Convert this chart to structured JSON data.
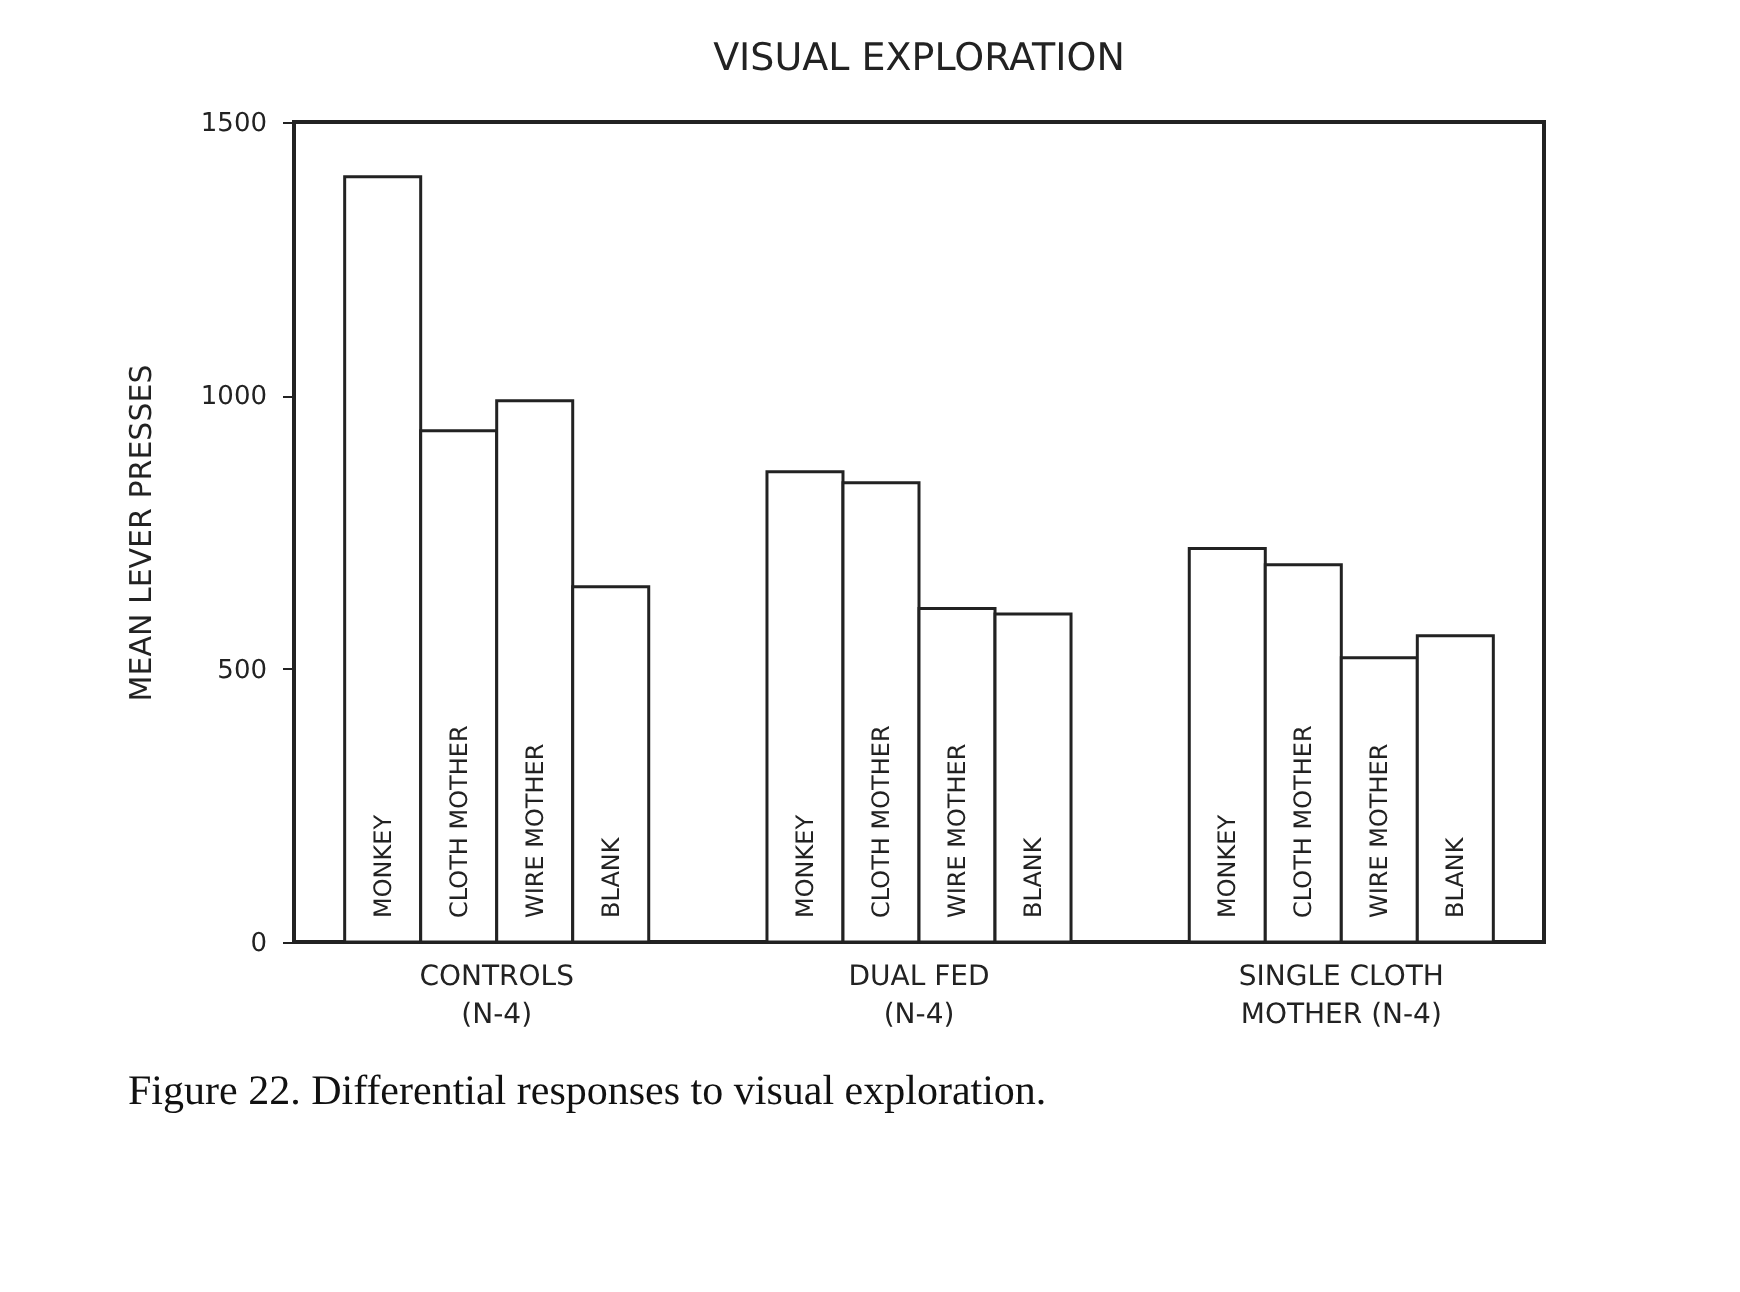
{
  "chart_data": {
    "type": "bar",
    "title": "VISUAL EXPLORATION",
    "ylabel": "MEAN LEVER PRESSES",
    "categories": [
      "CONTROLS\n(N-4)",
      "DUAL FED\n(N-4)",
      "SINGLE CLOTH\nMOTHER (N-4)"
    ],
    "series": [
      {
        "name": "MONKEY",
        "color": "#ffffff",
        "values": [
          1400,
          860,
          720
        ]
      },
      {
        "name": "CLOTH MOTHER",
        "color": "#ffffff",
        "values": [
          935,
          840,
          690
        ]
      },
      {
        "name": "WIRE MOTHER",
        "color": "#ffffff",
        "values": [
          990,
          610,
          520
        ]
      },
      {
        "name": "BLANK",
        "color": "#ffffff",
        "values": [
          650,
          600,
          560
        ]
      }
    ],
    "ylim": [
      0,
      1500
    ],
    "yticks": [
      0,
      500,
      1000,
      1500
    ],
    "grid": false,
    "annotations": [
      "Figure 22. Differential responses to visual exploration."
    ]
  }
}
